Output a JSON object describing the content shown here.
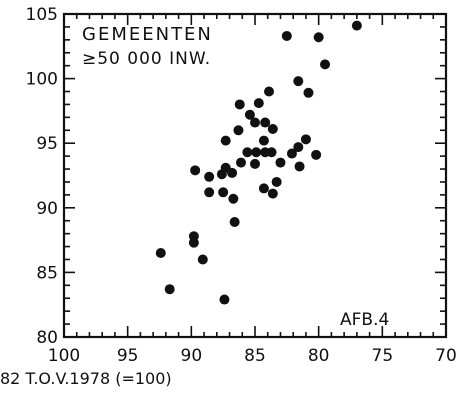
{
  "chart_data": {
    "type": "scatter",
    "annotation_line1": "GEMEENTEN",
    "annotation_line2": "≥50 000 INW.",
    "figure_label": "AFB.4",
    "xlabel": "82 T.O.V.1978 (=100)",
    "ylabel": "",
    "x_reversed": true,
    "xlim": [
      100,
      70
    ],
    "ylim": [
      80,
      105
    ],
    "x_ticks": [
      "100",
      "95",
      "90",
      "85",
      "80",
      "75",
      "70"
    ],
    "y_ticks": [
      "80",
      "85",
      "90",
      "95",
      "100",
      "105"
    ],
    "grid": false,
    "points": [
      {
        "x": 82.5,
        "y": 103.3
      },
      {
        "x": 80.0,
        "y": 103.2
      },
      {
        "x": 77.0,
        "y": 104.1
      },
      {
        "x": 79.5,
        "y": 101.1
      },
      {
        "x": 81.6,
        "y": 99.8
      },
      {
        "x": 80.8,
        "y": 98.9
      },
      {
        "x": 83.9,
        "y": 99.0
      },
      {
        "x": 84.7,
        "y": 98.1
      },
      {
        "x": 86.2,
        "y": 98.0
      },
      {
        "x": 85.4,
        "y": 97.2
      },
      {
        "x": 85.0,
        "y": 96.6
      },
      {
        "x": 84.2,
        "y": 96.6
      },
      {
        "x": 83.6,
        "y": 96.1
      },
      {
        "x": 86.3,
        "y": 96.0
      },
      {
        "x": 87.3,
        "y": 95.2
      },
      {
        "x": 84.3,
        "y": 95.2
      },
      {
        "x": 81.0,
        "y": 95.3
      },
      {
        "x": 81.6,
        "y": 94.7
      },
      {
        "x": 82.1,
        "y": 94.2
      },
      {
        "x": 80.2,
        "y": 94.1
      },
      {
        "x": 84.9,
        "y": 94.3
      },
      {
        "x": 85.6,
        "y": 94.3
      },
      {
        "x": 84.2,
        "y": 94.3
      },
      {
        "x": 83.7,
        "y": 94.3
      },
      {
        "x": 86.1,
        "y": 93.5
      },
      {
        "x": 85.0,
        "y": 93.4
      },
      {
        "x": 83.0,
        "y": 93.5
      },
      {
        "x": 81.5,
        "y": 93.2
      },
      {
        "x": 89.7,
        "y": 92.9
      },
      {
        "x": 88.6,
        "y": 92.4
      },
      {
        "x": 87.6,
        "y": 92.6
      },
      {
        "x": 86.8,
        "y": 92.7
      },
      {
        "x": 87.3,
        "y": 93.1
      },
      {
        "x": 83.3,
        "y": 92.0
      },
      {
        "x": 84.3,
        "y": 91.5
      },
      {
        "x": 88.6,
        "y": 91.2
      },
      {
        "x": 87.5,
        "y": 91.2
      },
      {
        "x": 86.7,
        "y": 90.7
      },
      {
        "x": 83.6,
        "y": 91.1
      },
      {
        "x": 86.6,
        "y": 88.9
      },
      {
        "x": 89.8,
        "y": 87.8
      },
      {
        "x": 89.8,
        "y": 87.3
      },
      {
        "x": 89.1,
        "y": 86.0
      },
      {
        "x": 92.4,
        "y": 86.5
      },
      {
        "x": 91.7,
        "y": 83.7
      },
      {
        "x": 87.4,
        "y": 82.9
      }
    ]
  }
}
